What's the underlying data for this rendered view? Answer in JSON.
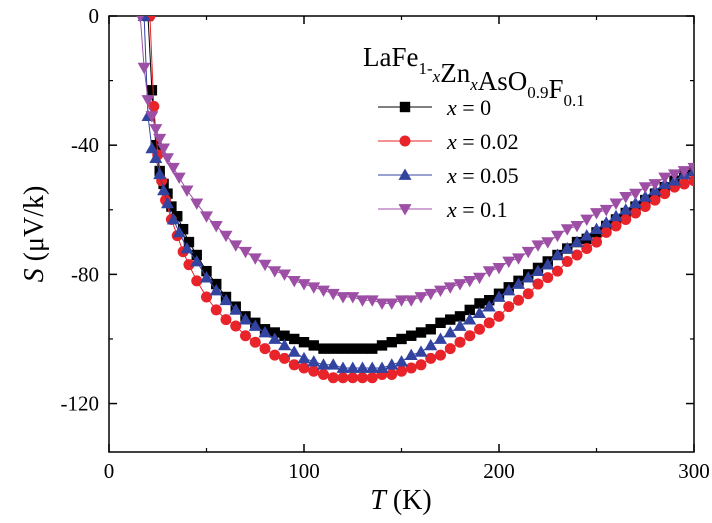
{
  "chart_data": {
    "type": "line",
    "title_parts": [
      {
        "text": "LaFe",
        "style": "normal"
      },
      {
        "text": "1-",
        "style": "sub"
      },
      {
        "text": "x",
        "style": "sub-italic"
      },
      {
        "text": "Zn",
        "style": "normal"
      },
      {
        "text": "x",
        "style": "sub-italic"
      },
      {
        "text": "AsO",
        "style": "normal"
      },
      {
        "text": "0.9",
        "style": "sub"
      },
      {
        "text": "F",
        "style": "normal"
      },
      {
        "text": "0.1",
        "style": "sub"
      }
    ],
    "xlabel_var": "T",
    "xlabel_unit": " (K)",
    "ylabel_var": "S",
    "ylabel_unit": " (μV/k)",
    "xlim": [
      0,
      300
    ],
    "ylim": [
      -135,
      0
    ],
    "xticks": [
      0,
      100,
      200,
      300
    ],
    "yticks": [
      0,
      -40,
      -80,
      -120
    ],
    "grid": false,
    "legend_position": "top-right",
    "series": [
      {
        "name_var": "x",
        "name_rest": " = 0",
        "color": "#000000",
        "marker": "square",
        "x": [
          20,
          22,
          24,
          26,
          28,
          30,
          32,
          35,
          38,
          41,
          45,
          50,
          55,
          60,
          65,
          70,
          75,
          80,
          85,
          90,
          95,
          100,
          105,
          110,
          115,
          120,
          125,
          130,
          135,
          140,
          145,
          150,
          155,
          160,
          165,
          170,
          175,
          180,
          185,
          190,
          195,
          200,
          205,
          210,
          215,
          220,
          225,
          230,
          235,
          240,
          245,
          250,
          255,
          260,
          265,
          270,
          275,
          280,
          285,
          290,
          295,
          300
        ],
        "y": [
          0,
          -23,
          -40,
          -48,
          -52,
          -55,
          -59,
          -62,
          -66,
          -70,
          -74,
          -79,
          -83,
          -87,
          -90,
          -93,
          -95,
          -97,
          -98,
          -99,
          -100,
          -101,
          -102,
          -103,
          -103,
          -103,
          -103,
          -103,
          -103,
          -102,
          -101,
          -100,
          -99,
          -98,
          -97,
          -95,
          -94,
          -93,
          -91,
          -89,
          -88,
          -86,
          -84,
          -82,
          -80,
          -78,
          -76,
          -74,
          -72,
          -70,
          -69,
          -67,
          -65,
          -63,
          -61,
          -59,
          -57,
          -55,
          -53,
          -51,
          -49,
          -48
        ]
      },
      {
        "name_var": "x",
        "name_rest": " = 0.02",
        "color": "#e8232a",
        "marker": "circle",
        "x": [
          21,
          23,
          25,
          27,
          29,
          32,
          35,
          38,
          41,
          45,
          50,
          55,
          60,
          65,
          70,
          75,
          80,
          85,
          90,
          95,
          100,
          105,
          110,
          115,
          120,
          125,
          130,
          135,
          140,
          145,
          150,
          155,
          160,
          165,
          170,
          175,
          180,
          185,
          190,
          195,
          200,
          205,
          210,
          215,
          220,
          225,
          230,
          235,
          240,
          245,
          250,
          255,
          260,
          265,
          270,
          275,
          280,
          285,
          290,
          295,
          300
        ],
        "y": [
          0,
          -28,
          -43,
          -51,
          -57,
          -63,
          -68,
          -73,
          -77,
          -82,
          -87,
          -91,
          -94,
          -96,
          -99,
          -101,
          -103,
          -105,
          -106,
          -108,
          -109,
          -110,
          -111,
          -112,
          -112,
          -112,
          -112,
          -112,
          -111,
          -111,
          -110,
          -109,
          -108,
          -106,
          -105,
          -103,
          -101,
          -99,
          -97,
          -95,
          -93,
          -90,
          -88,
          -86,
          -83,
          -81,
          -79,
          -76,
          -74,
          -72,
          -70,
          -67,
          -65,
          -63,
          -61,
          -59,
          -57,
          -55,
          -53,
          -52,
          -51
        ]
      },
      {
        "name_var": "x",
        "name_rest": " = 0.05",
        "color": "#3343a0",
        "marker": "triangle-up",
        "x": [
          18,
          20,
          22,
          24,
          26,
          28,
          30,
          33,
          36,
          40,
          45,
          50,
          55,
          60,
          65,
          70,
          75,
          80,
          85,
          90,
          95,
          100,
          105,
          110,
          115,
          120,
          125,
          130,
          135,
          140,
          145,
          150,
          155,
          160,
          165,
          170,
          175,
          180,
          185,
          190,
          195,
          200,
          205,
          210,
          215,
          220,
          225,
          230,
          235,
          240,
          245,
          250,
          255,
          260,
          265,
          270,
          275,
          280,
          285,
          290,
          295,
          300
        ],
        "y": [
          0,
          -31,
          -41,
          -44,
          -49,
          -54,
          -58,
          -63,
          -67,
          -72,
          -76,
          -81,
          -85,
          -88,
          -91,
          -94,
          -96,
          -98,
          -100,
          -102,
          -104,
          -106,
          -107,
          -108,
          -108,
          -109,
          -109,
          -109,
          -109,
          -109,
          -108,
          -107,
          -105,
          -104,
          -102,
          -100,
          -98,
          -96,
          -94,
          -92,
          -90,
          -87,
          -85,
          -83,
          -81,
          -79,
          -77,
          -74,
          -72,
          -70,
          -68,
          -66,
          -64,
          -62,
          -60,
          -58,
          -56,
          -54,
          -52,
          -51,
          -49,
          -48
        ]
      },
      {
        "name_var": "x",
        "name_rest": " = 0.1",
        "color": "#9d4fa6",
        "marker": "triangle-down",
        "x": [
          16,
          18,
          20,
          22,
          24,
          26,
          28,
          30,
          33,
          36,
          40,
          45,
          50,
          55,
          60,
          65,
          70,
          75,
          80,
          85,
          90,
          95,
          100,
          105,
          110,
          115,
          120,
          125,
          130,
          135,
          140,
          145,
          150,
          155,
          160,
          165,
          170,
          175,
          180,
          185,
          190,
          195,
          200,
          205,
          210,
          215,
          220,
          225,
          230,
          235,
          240,
          245,
          250,
          255,
          260,
          265,
          270,
          275,
          280,
          285,
          290,
          295,
          300
        ],
        "y": [
          0,
          -16,
          -26,
          -31,
          -35,
          -38,
          -41,
          -44,
          -47,
          -50,
          -54,
          -58,
          -62,
          -65,
          -68,
          -71,
          -73,
          -75,
          -77,
          -79,
          -80,
          -82,
          -83,
          -84,
          -85,
          -86,
          -87,
          -87,
          -88,
          -88,
          -89,
          -89,
          -88,
          -88,
          -87,
          -86,
          -85,
          -84,
          -83,
          -82,
          -81,
          -79,
          -78,
          -76,
          -75,
          -73,
          -71,
          -70,
          -68,
          -66,
          -65,
          -63,
          -61,
          -60,
          -58,
          -56,
          -55,
          -53,
          -52,
          -50,
          -49,
          -48,
          -47
        ]
      }
    ]
  }
}
